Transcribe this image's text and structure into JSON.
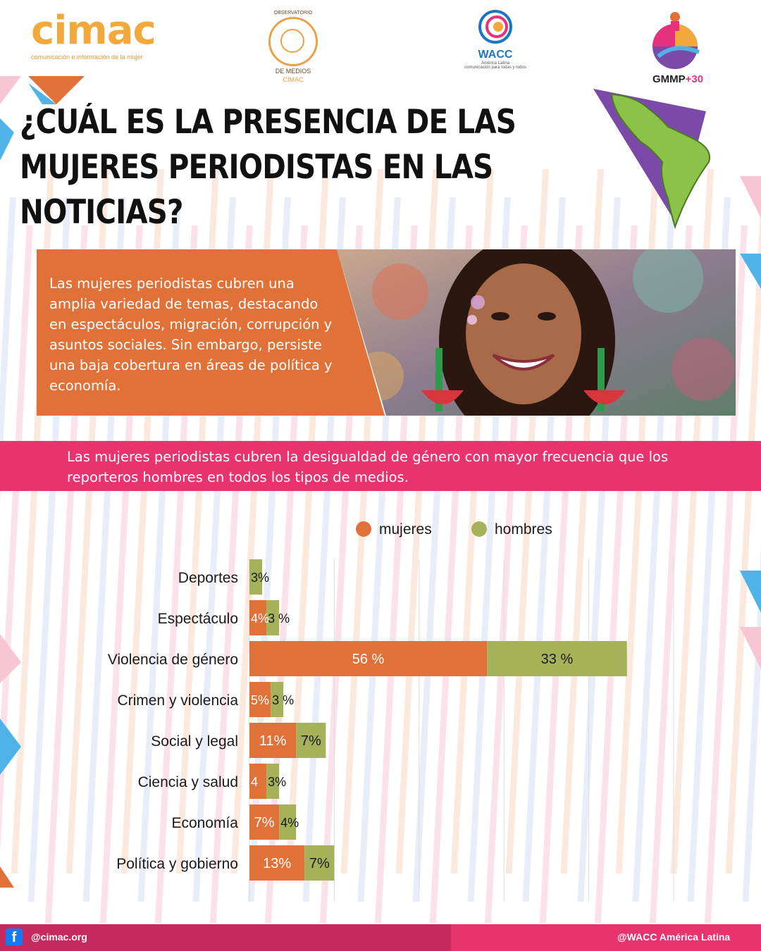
{
  "header": {
    "cimac_logo": "cimac",
    "cimac_tagline": "comunicación e información de la mujer",
    "observatorio_top": "OBSERVATORIO",
    "observatorio_bottom": "DE MEDIOS",
    "observatorio_sub": "CIMAC",
    "wacc_name": "WACC",
    "wacc_region": "América Latina",
    "wacc_tagline": "comunicación para todas y todos",
    "gmmp_name": "GMMP",
    "gmmp_suffix": "+30"
  },
  "title": "¿CUÁL ES LA PRESENCIA DE LAS MUJERES PERIODISTAS EN LAS NOTICIAS?",
  "intro_text": "Las mujeres periodistas cubren una amplia variedad de temas, destacando en espectáculos, migración, corrupción y asuntos sociales. Sin embargo, persiste una baja cobertura en áreas de política y economía.",
  "banner_text": "Las mujeres periodistas cubren la desigualdad de género con mayor frecuencia que los reporteros hombres en todos los tipos de medios.",
  "colors": {
    "orange": "#e07138",
    "green": "#a5b25a",
    "pink": "#e7336e",
    "purple": "#7b4aa8"
  },
  "chart_data": {
    "type": "bar",
    "orientation": "horizontal",
    "stacked": true,
    "categories": [
      "Deportes",
      "Espectáculo",
      "Violencia de género",
      "Crimen y violencia",
      "Social y legal",
      "Ciencia y salud",
      "Economía",
      "Política y gobierno"
    ],
    "series": [
      {
        "name": "mujeres",
        "values": [
          0,
          4,
          56,
          5,
          11,
          4,
          7,
          13
        ],
        "labels": [
          "",
          "4%",
          "56 %",
          "5%",
          "11%",
          "4",
          "7%",
          "13%"
        ]
      },
      {
        "name": "hombres",
        "values": [
          3,
          3,
          33,
          3,
          7,
          3,
          4,
          7
        ],
        "labels": [
          "3%",
          "3 %",
          "33 %",
          "3 %",
          "7%",
          "3%",
          "4%",
          "7%"
        ]
      }
    ],
    "legend": [
      "mujeres",
      "hombres"
    ],
    "legend_position": "top",
    "xlim": [
      0,
      100
    ],
    "grid": true
  },
  "footer": {
    "left": "@cimac.org",
    "right": "@WACC América Latina",
    "fb_icon": "f"
  }
}
